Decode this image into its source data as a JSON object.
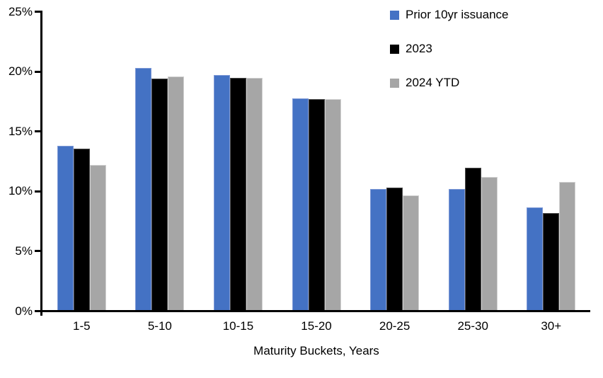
{
  "chart_data": {
    "type": "bar",
    "title": "",
    "xlabel": "Maturity Buckets, Years",
    "ylabel": "",
    "categories": [
      "1-5",
      "5-10",
      "10-15",
      "15-20",
      "20-25",
      "25-30",
      "30+"
    ],
    "series": [
      {
        "name": "Prior 10yr issuance",
        "color": "#4472C4",
        "border_color": "#7E99D6",
        "values": [
          13.7,
          20.2,
          19.6,
          17.7,
          10.1,
          10.1,
          8.6
        ]
      },
      {
        "name": "2023",
        "color": "#000000",
        "border_color": "#4D4D4D",
        "values": [
          13.5,
          19.3,
          19.4,
          17.6,
          10.2,
          11.9,
          8.1
        ]
      },
      {
        "name": "2024 YTD",
        "color": "#A6A6A6",
        "border_color": "#D2D2D2",
        "values": [
          12.1,
          19.5,
          19.4,
          17.6,
          9.6,
          11.1,
          10.7
        ]
      }
    ],
    "ylim": [
      0,
      25
    ],
    "ytick_step": 5,
    "ytick_labels": [
      "0%",
      "5%",
      "10%",
      "15%",
      "20%",
      "25%"
    ],
    "legend_position": "top-right",
    "grid": false,
    "background_color": "#FFFFFF",
    "axis_color": "#000000"
  }
}
